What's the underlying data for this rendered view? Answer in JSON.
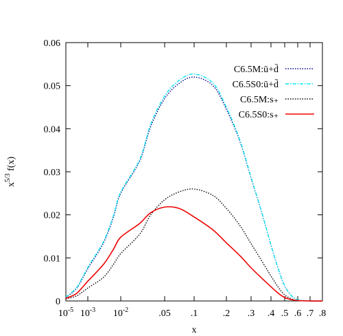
{
  "chart_data": {
    "type": "line",
    "xlabel": "x",
    "ylabel_base": "x",
    "ylabel_exp": "5/3",
    "ylabel_tail": " f(x)",
    "xscale": "custom-nonlinear",
    "ylim": [
      0,
      0.06
    ],
    "grid": false,
    "legend_position": "top-right",
    "xticks": [
      {
        "x": 1e-05,
        "base": "10",
        "exp": "-5"
      },
      {
        "x": 0.001,
        "base": "10",
        "exp": "-3"
      },
      {
        "x": 0.01,
        "base": "10",
        "exp": "-2"
      },
      {
        "x": 0.05,
        "label": ".05"
      },
      {
        "x": 0.1,
        "label": ".1"
      },
      {
        "x": 0.2,
        "label": ".2"
      },
      {
        "x": 0.3,
        "label": ".3"
      },
      {
        "x": 0.4,
        "label": ".4"
      },
      {
        "x": 0.5,
        "label": ".5"
      },
      {
        "x": 0.6,
        "label": ".6"
      },
      {
        "x": 0.7,
        "label": ".7"
      },
      {
        "x": 0.8,
        "label": ".8"
      }
    ],
    "yticks": [
      {
        "y": 0,
        "label": "0"
      },
      {
        "y": 0.01,
        "label": "0.01"
      },
      {
        "y": 0.02,
        "label": "0.02"
      },
      {
        "y": 0.03,
        "label": "0.03"
      },
      {
        "y": 0.04,
        "label": "0.04"
      },
      {
        "y": 0.05,
        "label": "0.05"
      },
      {
        "y": 0.06,
        "label": "0.06"
      }
    ],
    "series": [
      {
        "name": "C6.5M:ū+d̄",
        "color": "#00008b",
        "dash": "dotted",
        "x": [
          1e-05,
          0.0001,
          0.001,
          0.003,
          0.006,
          0.01,
          0.02,
          0.03,
          0.05,
          0.07,
          0.1,
          0.15,
          0.2,
          0.25,
          0.3,
          0.35,
          0.4,
          0.45,
          0.5,
          0.55,
          0.6,
          0.7,
          0.8
        ],
        "y": [
          0.0008,
          0.003,
          0.0075,
          0.0135,
          0.0195,
          0.025,
          0.0325,
          0.0405,
          0.047,
          0.0505,
          0.052,
          0.05,
          0.0445,
          0.037,
          0.0285,
          0.0205,
          0.013,
          0.0075,
          0.0035,
          0.0012,
          0.0003,
          0.0,
          0.0
        ]
      },
      {
        "name": "C6.5S0:ū+d̄",
        "color": "#00e5ee",
        "dash": "dashdot",
        "x": [
          1e-05,
          0.0001,
          0.001,
          0.003,
          0.006,
          0.01,
          0.02,
          0.03,
          0.05,
          0.07,
          0.1,
          0.15,
          0.2,
          0.25,
          0.3,
          0.35,
          0.4,
          0.45,
          0.5,
          0.55,
          0.6,
          0.7,
          0.8
        ],
        "y": [
          0.0009,
          0.0032,
          0.0078,
          0.0138,
          0.0198,
          0.0253,
          0.0328,
          0.041,
          0.0476,
          0.0512,
          0.0527,
          0.0506,
          0.045,
          0.0373,
          0.0287,
          0.0206,
          0.013,
          0.0075,
          0.0035,
          0.0012,
          0.0003,
          0.0,
          0.0
        ]
      },
      {
        "name": "C6.5M:s₊",
        "color": "#000000",
        "dash": "dotted",
        "x": [
          1e-05,
          0.0001,
          0.001,
          0.003,
          0.006,
          0.01,
          0.02,
          0.03,
          0.05,
          0.07,
          0.1,
          0.15,
          0.2,
          0.25,
          0.3,
          0.35,
          0.4,
          0.45,
          0.5,
          0.55,
          0.6,
          0.7,
          0.8
        ],
        "y": [
          0.0005,
          0.0012,
          0.003,
          0.0055,
          0.0085,
          0.011,
          0.0155,
          0.02,
          0.0235,
          0.0253,
          0.026,
          0.0245,
          0.0215,
          0.0175,
          0.0133,
          0.0093,
          0.0058,
          0.0032,
          0.0014,
          0.0005,
          0.0001,
          0.0,
          0.0
        ]
      },
      {
        "name": "C6.5S0:s₊",
        "color": "#ee0000",
        "dash": "solid",
        "x": [
          1e-05,
          0.0001,
          0.001,
          0.003,
          0.006,
          0.01,
          0.02,
          0.03,
          0.05,
          0.07,
          0.1,
          0.15,
          0.2,
          0.25,
          0.3,
          0.35,
          0.4,
          0.45,
          0.5,
          0.55,
          0.6,
          0.7,
          0.8
        ],
        "y": [
          0.0006,
          0.0018,
          0.0046,
          0.0085,
          0.012,
          0.0148,
          0.018,
          0.0205,
          0.0218,
          0.0215,
          0.0195,
          0.0165,
          0.0135,
          0.0105,
          0.0077,
          0.0053,
          0.0033,
          0.0018,
          0.0008,
          0.0003,
          0.0001,
          0.0,
          0.0
        ]
      }
    ]
  }
}
